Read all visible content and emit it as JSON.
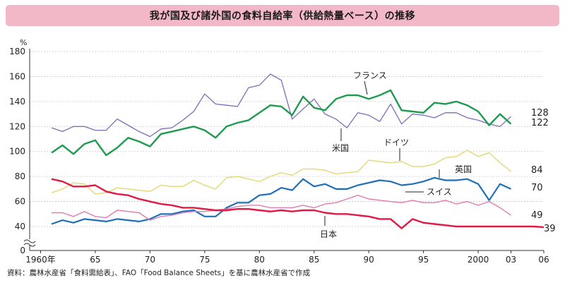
{
  "title": "我が国及び諸外国の食料自給率（供給熱量ベース）の推移",
  "source_note": "資料：農林水産省「食料需給表」、FAO「Food Balance Sheets」を基に農林水産省で作成",
  "chart_data": {
    "type": "line",
    "ylabel": "%",
    "ylim": [
      0,
      180
    ],
    "axis_break": true,
    "yticks": [
      0,
      40,
      60,
      80,
      100,
      120,
      140,
      160,
      180
    ],
    "xlim": [
      1959,
      2006
    ],
    "xticks": [
      {
        "x": 1960,
        "label": "1960年"
      },
      {
        "x": 1965,
        "label": "65"
      },
      {
        "x": 1970,
        "label": "70"
      },
      {
        "x": 1975,
        "label": "75"
      },
      {
        "x": 1980,
        "label": "80"
      },
      {
        "x": 1985,
        "label": "85"
      },
      {
        "x": 1990,
        "label": "90"
      },
      {
        "x": 1995,
        "label": "95"
      },
      {
        "x": 2000,
        "label": "2000"
      },
      {
        "x": 2003,
        "label": "03"
      },
      {
        "x": 2006,
        "label": "06"
      }
    ],
    "grid": true,
    "series": [
      {
        "name": "米国",
        "color": "#7b6db8",
        "width": 1.3,
        "x": [
          1961,
          1962,
          1963,
          1964,
          1965,
          1966,
          1967,
          1968,
          1969,
          1970,
          1971,
          1972,
          1973,
          1974,
          1975,
          1976,
          1977,
          1978,
          1979,
          1980,
          1981,
          1982,
          1983,
          1984,
          1985,
          1986,
          1987,
          1988,
          1989,
          1990,
          1991,
          1992,
          1993,
          1994,
          1995,
          1996,
          1997,
          1998,
          1999,
          2000,
          2001,
          2002,
          2003
        ],
        "y": [
          119,
          116,
          120,
          120,
          117,
          117,
          126,
          121,
          116,
          112,
          118,
          119,
          125,
          132,
          146,
          138,
          137,
          136,
          151,
          153,
          162,
          157,
          126,
          134,
          142,
          130,
          126,
          119,
          131,
          129,
          124,
          138,
          122,
          130,
          129,
          127,
          131,
          131,
          127,
          125,
          122,
          120,
          128
        ],
        "end_label": "128"
      },
      {
        "name": "フランス",
        "color": "#1f9a4e",
        "width": 2.4,
        "x": [
          1961,
          1962,
          1963,
          1964,
          1965,
          1966,
          1967,
          1968,
          1969,
          1970,
          1971,
          1972,
          1973,
          1974,
          1975,
          1976,
          1977,
          1978,
          1979,
          1980,
          1981,
          1982,
          1983,
          1984,
          1985,
          1986,
          1987,
          1988,
          1989,
          1990,
          1991,
          1992,
          1993,
          1994,
          1995,
          1996,
          1997,
          1998,
          1999,
          2000,
          2001,
          2002,
          2003
        ],
        "y": [
          99,
          105,
          98,
          106,
          109,
          97,
          103,
          111,
          108,
          104,
          114,
          116,
          118,
          120,
          117,
          111,
          120,
          123,
          125,
          131,
          137,
          136,
          129,
          144,
          135,
          133,
          142,
          145,
          145,
          142,
          145,
          149,
          133,
          132,
          131,
          139,
          138,
          140,
          137,
          132,
          121,
          130,
          122
        ],
        "end_label": "122"
      },
      {
        "name": "ドイツ",
        "color": "#e6d97a",
        "width": 1.5,
        "x": [
          1961,
          1962,
          1963,
          1964,
          1965,
          1966,
          1967,
          1968,
          1969,
          1970,
          1971,
          1972,
          1973,
          1974,
          1975,
          1976,
          1977,
          1978,
          1979,
          1980,
          1981,
          1982,
          1983,
          1984,
          1985,
          1986,
          1987,
          1988,
          1989,
          1990,
          1991,
          1992,
          1993,
          1994,
          1995,
          1996,
          1997,
          1998,
          1999,
          2000,
          2001,
          2002,
          2003
        ],
        "y": [
          67,
          70,
          75,
          74,
          66,
          67,
          71,
          70,
          69,
          68,
          73,
          72,
          72,
          77,
          73,
          70,
          79,
          80,
          78,
          76,
          80,
          83,
          81,
          86,
          86,
          85,
          82,
          83,
          84,
          93,
          92,
          91,
          92,
          88,
          88,
          90,
          95,
          96,
          101,
          96,
          99,
          91,
          84
        ],
        "end_label": "84"
      },
      {
        "name": "英国",
        "color": "#1f6fb8",
        "width": 2.2,
        "x": [
          1961,
          1962,
          1963,
          1964,
          1965,
          1966,
          1967,
          1968,
          1969,
          1970,
          1971,
          1972,
          1973,
          1974,
          1975,
          1976,
          1977,
          1978,
          1979,
          1980,
          1981,
          1982,
          1983,
          1984,
          1985,
          1986,
          1987,
          1988,
          1989,
          1990,
          1991,
          1992,
          1993,
          1994,
          1995,
          1996,
          1997,
          1998,
          1999,
          2000,
          2001,
          2002,
          2003
        ],
        "y": [
          42,
          45,
          43,
          46,
          45,
          44,
          46,
          45,
          44,
          46,
          50,
          50,
          52,
          53,
          48,
          48,
          55,
          59,
          59,
          65,
          66,
          71,
          69,
          78,
          72,
          74,
          70,
          70,
          73,
          75,
          77,
          76,
          73,
          74,
          76,
          79,
          77,
          77,
          78,
          74,
          61,
          74,
          70
        ],
        "end_label": "70"
      },
      {
        "name": "スイス",
        "color": "#e37ab0",
        "width": 1.4,
        "x": [
          1961,
          1962,
          1963,
          1964,
          1965,
          1966,
          1967,
          1968,
          1969,
          1970,
          1971,
          1972,
          1973,
          1974,
          1975,
          1976,
          1977,
          1978,
          1979,
          1980,
          1981,
          1982,
          1983,
          1984,
          1985,
          1986,
          1987,
          1988,
          1989,
          1990,
          1991,
          1992,
          1993,
          1994,
          1995,
          1996,
          1997,
          1998,
          1999,
          2000,
          2001,
          2002,
          2003
        ],
        "y": [
          51,
          51,
          48,
          52,
          48,
          47,
          53,
          52,
          51,
          45,
          48,
          49,
          51,
          52,
          52,
          53,
          54,
          56,
          57,
          57,
          55,
          55,
          55,
          57,
          55,
          58,
          59,
          62,
          65,
          62,
          61,
          60,
          59,
          61,
          59,
          59,
          61,
          58,
          60,
          57,
          60,
          55,
          49
        ],
        "end_label": "49"
      },
      {
        "name": "日本",
        "color": "#e01a44",
        "width": 2.4,
        "x": [
          1961,
          1962,
          1963,
          1964,
          1965,
          1966,
          1967,
          1968,
          1969,
          1970,
          1971,
          1972,
          1973,
          1974,
          1975,
          1976,
          1977,
          1978,
          1979,
          1980,
          1981,
          1982,
          1983,
          1984,
          1985,
          1986,
          1987,
          1988,
          1989,
          1990,
          1991,
          1992,
          1993,
          1994,
          1995,
          1996,
          1997,
          1998,
          1999,
          2000,
          2001,
          2002,
          2003,
          2004,
          2005,
          2006
        ],
        "y": [
          78,
          76,
          72,
          72,
          73,
          68,
          66,
          65,
          62,
          60,
          58,
          57,
          55,
          55,
          54,
          53,
          53,
          54,
          54,
          53,
          52,
          53,
          52,
          53,
          53,
          51,
          50,
          50,
          49,
          48,
          46,
          46,
          37,
          46,
          43,
          42,
          41,
          40,
          40,
          40,
          40,
          40,
          40,
          40,
          40,
          39
        ],
        "end_label": "39"
      }
    ],
    "annotations": [
      {
        "text": "フランス",
        "series": "フランス"
      },
      {
        "text": "米国",
        "series": "米国"
      },
      {
        "text": "ドイツ",
        "series": "ドイツ"
      },
      {
        "text": "英国",
        "series": "英国"
      },
      {
        "text": "スイス",
        "series": "スイス"
      },
      {
        "text": "日本",
        "series": "日本"
      }
    ]
  }
}
